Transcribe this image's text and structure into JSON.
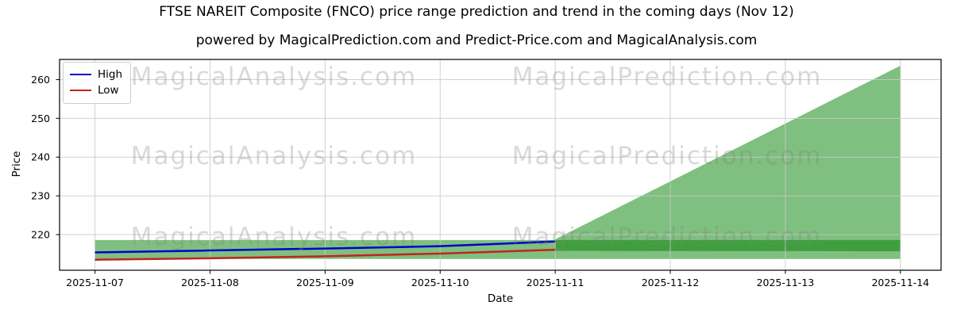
{
  "watermarks": {
    "left_text": "MagicalAnalysis.com",
    "right_text": "MagicalPrediction.com"
  },
  "chart_data": {
    "type": "line",
    "title": "FTSE NAREIT Composite (FNCO) price range prediction and trend in the coming days (Nov 12)",
    "subtitle": "powered by MagicalPrediction.com and Predict-Price.com and MagicalAnalysis.com",
    "xlabel": "Date",
    "ylabel": "Price",
    "categories": [
      "2025-11-07",
      "2025-11-08",
      "2025-11-09",
      "2025-11-10",
      "2025-11-11",
      "2025-11-12",
      "2025-11-13",
      "2025-11-14"
    ],
    "y_ticks": [
      220,
      230,
      240,
      250,
      260
    ],
    "ylim": [
      210.8,
      265.2
    ],
    "grid": true,
    "legend_position": "upper left",
    "series": [
      {
        "name": "High",
        "color": "#0000cd",
        "values": [
          215.4,
          215.9,
          216.4,
          217.0,
          218.2,
          null,
          null,
          null
        ]
      },
      {
        "name": "Low",
        "color": "#c22320",
        "values": [
          213.5,
          213.9,
          214.4,
          215.1,
          216.1,
          null,
          null,
          null
        ]
      }
    ],
    "bands": [
      {
        "name": "predicted-range-band",
        "shape": "rect",
        "x_start": "2025-11-07",
        "x_end": "2025-11-14",
        "low": 213.7,
        "high": 218.6,
        "color": "#008000",
        "opacity": 0.5
      },
      {
        "name": "forecast-fan",
        "shape": "polygon",
        "points_x": [
          "2025-11-11",
          "2025-11-11",
          "2025-11-14",
          "2025-11-14"
        ],
        "points_y": [
          215.8,
          218.8,
          263.6,
          215.7
        ],
        "color": "#008000",
        "opacity": 0.5
      }
    ]
  }
}
